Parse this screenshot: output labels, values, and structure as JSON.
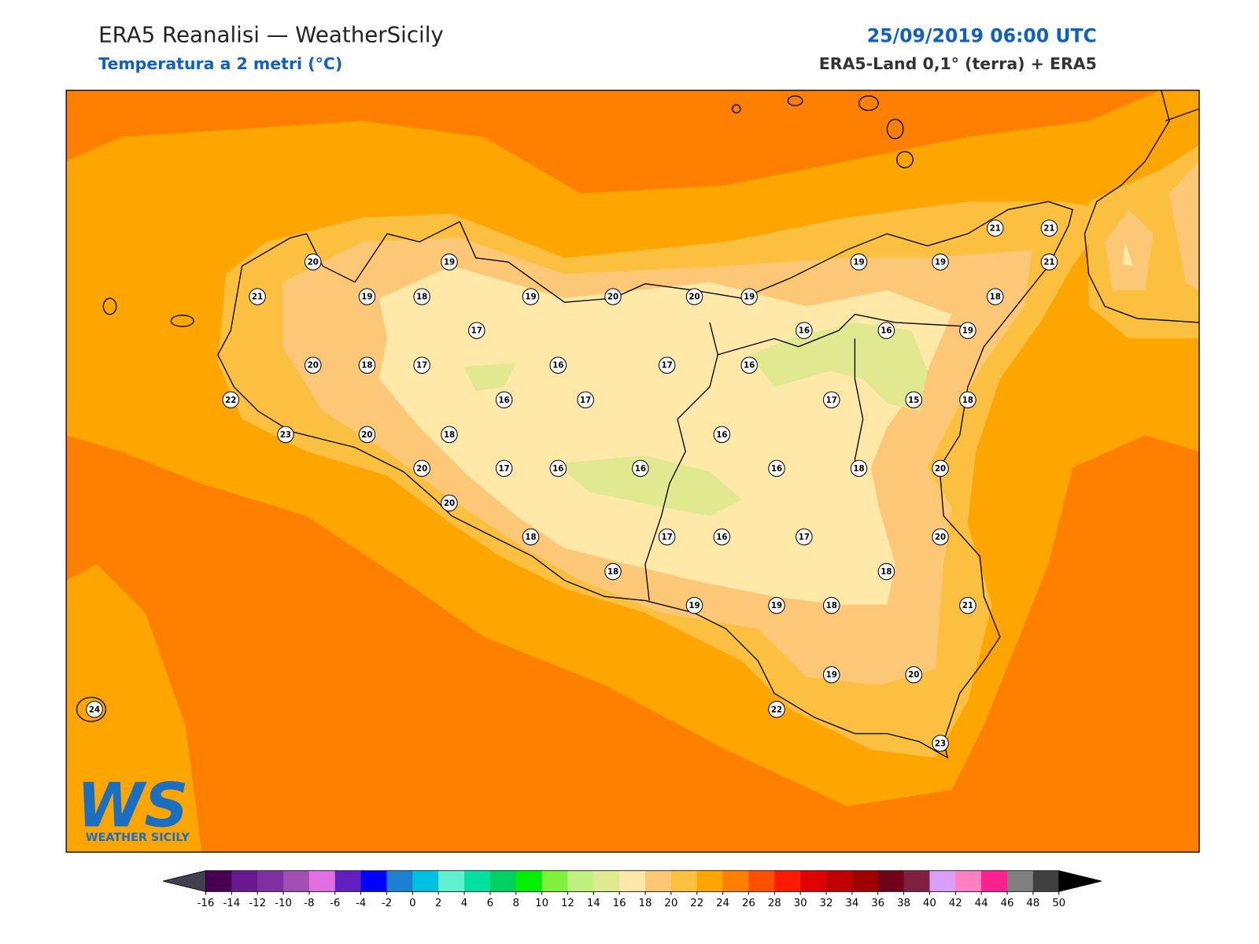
{
  "header": {
    "title": "ERA5 Reanalisi — WeatherSicily",
    "subtitle": "Temperatura a 2 metri (°C)",
    "datetime": "25/09/2019 06:00 UTC",
    "source": "ERA5-Land 0,1° (terra) + ERA5"
  },
  "stations": [
    20,
    19,
    21,
    19,
    18,
    19,
    20,
    20,
    19,
    17,
    16,
    16,
    19,
    19,
    21,
    21,
    21,
    18,
    19,
    20,
    18,
    17,
    16,
    17,
    16,
    16,
    17,
    17,
    15,
    18,
    22,
    23,
    20,
    18,
    16,
    20,
    17,
    16,
    16,
    16,
    18,
    20,
    20,
    18,
    17,
    16,
    17,
    20,
    18,
    18,
    19,
    19,
    18,
    21,
    19,
    20,
    22,
    23,
    24
  ],
  "colorbar": {
    "ticks": [
      -16,
      -14,
      -12,
      -10,
      -8,
      -6,
      -4,
      -2,
      0,
      2,
      4,
      6,
      8,
      10,
      12,
      14,
      16,
      18,
      20,
      22,
      24,
      26,
      28,
      30,
      32,
      34,
      36,
      38,
      40,
      42,
      44,
      46,
      48,
      50
    ],
    "colors": [
      "#4a0050",
      "#6a1a90",
      "#8030a0",
      "#a050b0",
      "#e070e0",
      "#6020c0",
      "#0000ff",
      "#1e80d0",
      "#00c0e0",
      "#60f0d0",
      "#00e0a0",
      "#00d060",
      "#00f000",
      "#80f040",
      "#c0f080",
      "#e0e890",
      "#ffe8a8",
      "#fcc878",
      "#fcc040",
      "#ffa500",
      "#ff8000",
      "#ff5000",
      "#ff1a00",
      "#e00000",
      "#c00000",
      "#a00000",
      "#700018",
      "#802040",
      "#d8a0f8",
      "#ff80c0",
      "#ff2090",
      "#808080",
      "#404040"
    ],
    "under_color": "#404050",
    "over_color": "#000000"
  },
  "logo": {
    "letters": "WS",
    "name": "WEATHER SICILY"
  }
}
